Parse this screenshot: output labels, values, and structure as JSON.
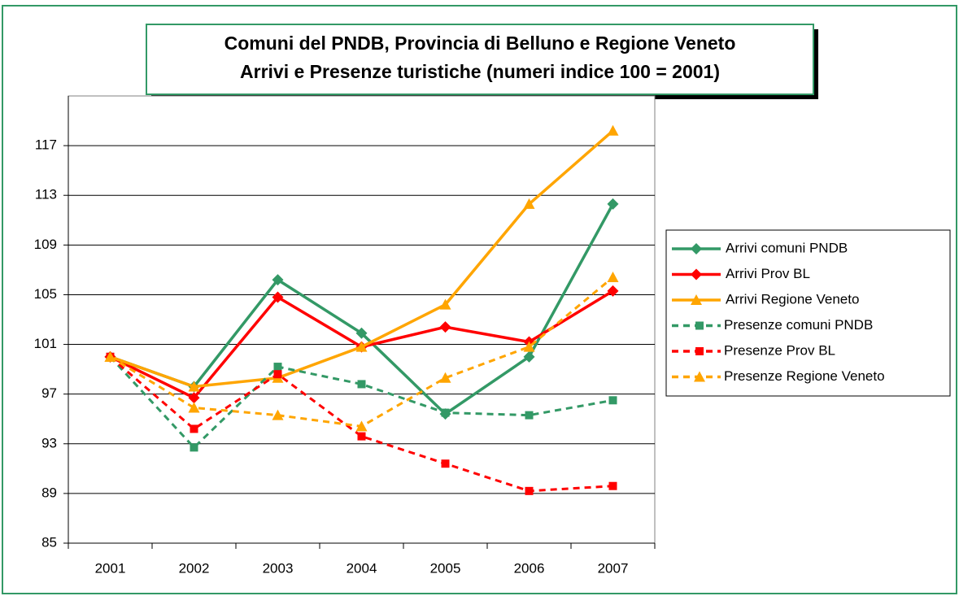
{
  "chart_data": {
    "type": "line",
    "title": [
      "Comuni del PNDB, Provincia di Belluno e Regione Veneto",
      "Arrivi e Presenze turistiche (numeri indice 100 = 2001)"
    ],
    "categories": [
      "2001",
      "2002",
      "2003",
      "2004",
      "2005",
      "2006",
      "2007"
    ],
    "series": [
      {
        "name": "Arrivi comuni PNDB",
        "color": "#339966",
        "marker": "diamond",
        "dashed": false,
        "values": [
          100,
          97.6,
          106.2,
          101.9,
          95.4,
          100.0,
          112.3
        ]
      },
      {
        "name": "Arrivi Prov BL",
        "color": "#ff0000",
        "marker": "diamond",
        "dashed": false,
        "values": [
          100,
          96.7,
          104.8,
          100.8,
          102.4,
          101.2,
          105.3
        ]
      },
      {
        "name": "Arrivi Regione Veneto",
        "color": "#ffa500",
        "marker": "triangle",
        "dashed": false,
        "values": [
          100,
          97.6,
          98.3,
          100.8,
          104.2,
          112.3,
          118.2
        ]
      },
      {
        "name": "Presenze comuni PNDB",
        "color": "#339966",
        "marker": "square",
        "dashed": true,
        "values": [
          100,
          92.7,
          99.2,
          97.8,
          95.5,
          95.3,
          96.5
        ]
      },
      {
        "name": "Presenze Prov BL",
        "color": "#ff0000",
        "marker": "square",
        "dashed": true,
        "values": [
          100,
          94.2,
          98.6,
          93.6,
          91.4,
          89.2,
          89.6
        ]
      },
      {
        "name": "Presenze Regione Veneto",
        "color": "#ffa500",
        "marker": "triangle",
        "dashed": true,
        "values": [
          100,
          95.9,
          95.3,
          94.4,
          98.3,
          100.8,
          106.4
        ]
      }
    ],
    "ylim": [
      85,
      121
    ],
    "yticks": [
      85,
      89,
      93,
      97,
      101,
      105,
      109,
      113,
      117
    ],
    "grid": true,
    "legend": "right"
  }
}
